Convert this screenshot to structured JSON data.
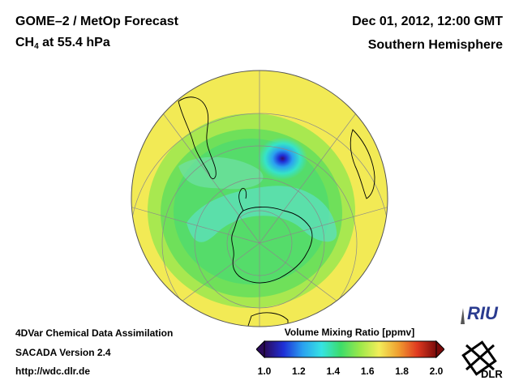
{
  "header": {
    "title_left": "GOME–2 / MetOp Forecast",
    "species_prefix": "CH",
    "species_subscript": "4",
    "species_suffix": " at 55.4 hPa",
    "date": "Dec 01, 2012, 12:00 GMT",
    "region": "Southern Hemisphere"
  },
  "footer": {
    "line1": "4DVar Chemical Data Assimilation",
    "line2": "SACADA Version 2.4",
    "line3": "http://wdc.dlr.de"
  },
  "colorbar": {
    "title": "Volume Mixing Ratio [ppmv]",
    "min": 1.0,
    "max": 2.0,
    "ticks": [
      "1.0",
      "1.2",
      "1.4",
      "1.6",
      "1.8",
      "2.0"
    ],
    "colors": [
      "#2b0a5a",
      "#1f2fd6",
      "#2aa0f0",
      "#36e3e3",
      "#3cdc6a",
      "#9be84a",
      "#f2ee5a",
      "#f0a030",
      "#e03a20",
      "#7a0a0a"
    ]
  },
  "map": {
    "projection": "orthographic",
    "center": "South Pole",
    "background_value": "~1.6 ppmv",
    "minimum_value": "~1.1 ppmv"
  },
  "logos": {
    "riu_text": "RIU",
    "dlr_text": "DLR"
  }
}
